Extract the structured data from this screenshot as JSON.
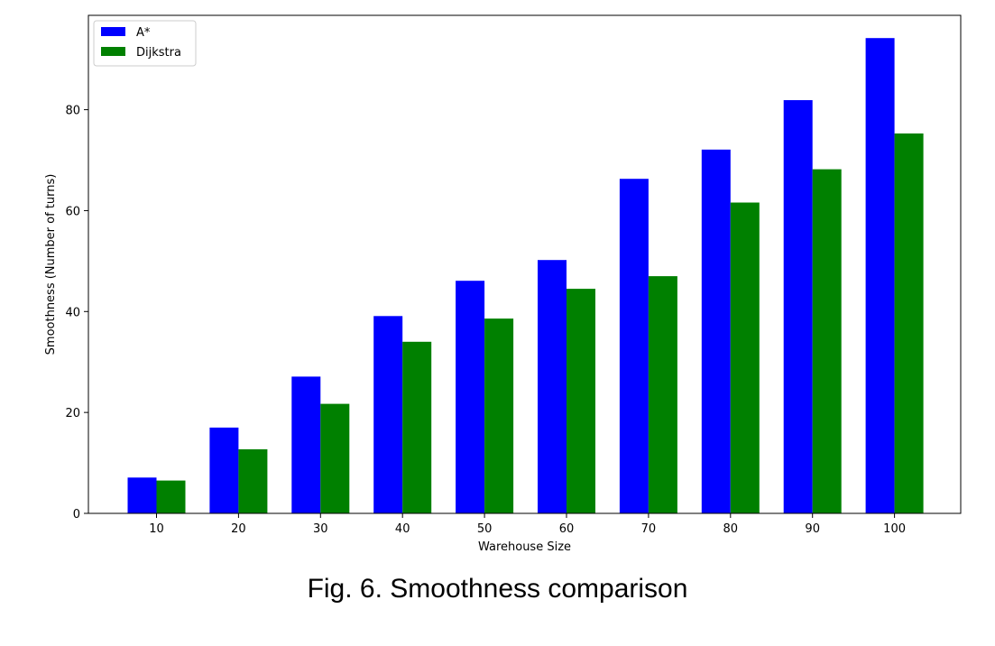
{
  "caption": "Fig. 6. Smoothness comparison",
  "chart_data": {
    "type": "bar",
    "categories": [
      "10",
      "20",
      "30",
      "40",
      "50",
      "60",
      "70",
      "80",
      "90",
      "100"
    ],
    "series": [
      {
        "name": "A*",
        "color": "#0000ff",
        "values": [
          7.1,
          17.0,
          27.1,
          39.1,
          46.1,
          50.2,
          66.3,
          72.1,
          81.9,
          94.2
        ]
      },
      {
        "name": "Dijkstra",
        "color": "#008000",
        "values": [
          6.5,
          12.7,
          21.7,
          34.0,
          38.6,
          44.5,
          47.0,
          61.6,
          68.2,
          75.3
        ]
      }
    ],
    "title": "",
    "xlabel": "Warehouse Size",
    "ylabel": "Smoothness (Number of turns)",
    "ylim": [
      0,
      98.7
    ],
    "yticks": [
      0,
      20,
      40,
      60,
      80
    ],
    "grid": false,
    "legend": "top-left"
  }
}
